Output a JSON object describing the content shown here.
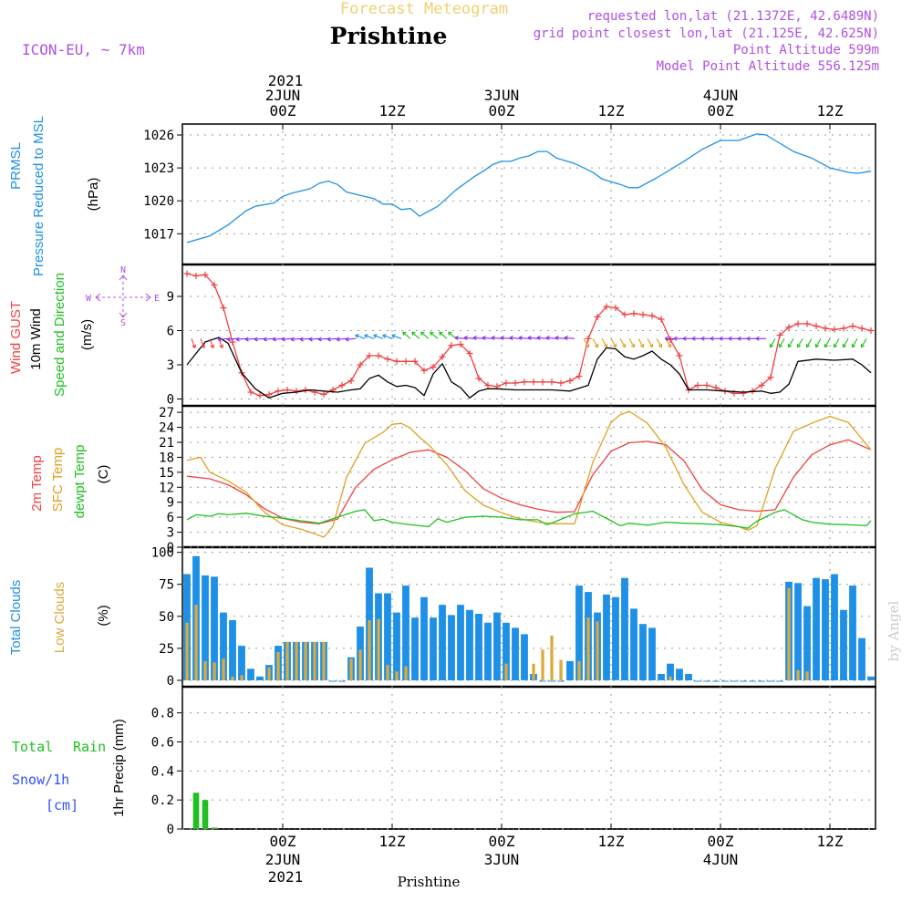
{
  "header": {
    "product_title": "Forecast Meteogram",
    "location_title": "Prishtine",
    "model_label": "ICON-EU, ~ 7km",
    "requested_point": "requested lon,lat (21.1372E, 42.6489N)",
    "grid_point": "grid point closest lon,lat (21.125E, 42.625N)",
    "point_altitude": "Point Altitude 599m",
    "model_altitude": "Model Point Altitude 556.125m",
    "top_year": "2021",
    "bottom_year": "2021",
    "bottom_location": "Prishtine",
    "watermark": "by Angel"
  },
  "colors": {
    "pressure": "#1e90e6",
    "gust": "#f04040",
    "wind": "#000000",
    "temp": "#f04040",
    "sfc_temp": "#e0a020",
    "dewpt": "#20c020",
    "total_clouds": "#1e90e6",
    "low_clouds": "#dcaa3c",
    "rain": "#20c020",
    "snow": "#3050ff",
    "title": "#f0d070",
    "info": "#b050e0",
    "frame": "#000000"
  },
  "time_axis": {
    "top_dates": [
      {
        "hour": 0,
        "label": "2JUN"
      },
      {
        "hour": 24,
        "label": "3JUN"
      },
      {
        "hour": 48,
        "label": "4JUN"
      }
    ],
    "bottom_dates": [
      {
        "hour": 0,
        "label": "2JUN"
      },
      {
        "hour": 24,
        "label": "3JUN"
      },
      {
        "hour": 48,
        "label": "4JUN"
      }
    ],
    "ticks": [
      {
        "hour": 0,
        "label": "00Z"
      },
      {
        "hour": 12,
        "label": "12Z"
      },
      {
        "hour": 24,
        "label": "00Z"
      },
      {
        "hour": 36,
        "label": "12Z"
      },
      {
        "hour": 48,
        "label": "00Z"
      },
      {
        "hour": 60,
        "label": "12Z"
      }
    ],
    "x_range_hours": [
      -11,
      65
    ]
  },
  "panels": {
    "pressure": {
      "label_line1": "PRMSL",
      "label_line2": "Pressure Reduced to MSL",
      "unit": "(hPa)"
    },
    "wind": {
      "label_gust": "Wind GUST",
      "label_wind": "10m Wind",
      "label_dir": "Speed and Direction",
      "unit": "(m/s)",
      "compass_n": "N",
      "compass_s": "S",
      "compass_w": "W",
      "compass_e": "E"
    },
    "temperature": {
      "label_t2m": "2m Temp",
      "label_sfc": "SFC Temp",
      "label_dewpt": "dewpt Temp",
      "unit": "(C)"
    },
    "clouds": {
      "label_total": "Total Clouds",
      "label_low": "Low Clouds",
      "unit": "(%)"
    },
    "precip": {
      "label_total": "Total",
      "label_rain": "Rain",
      "label_snow": "Snow/1h",
      "label_cm": "[cm]",
      "unit": "1hr Precip (mm)"
    }
  },
  "chart_data": [
    {
      "type": "line",
      "title": "",
      "ylabel": "PRMSL Pressure Reduced to MSL (hPa)",
      "ylim": [
        1014.2,
        1027.0
      ],
      "yticks": [
        1017,
        1020,
        1023,
        1026
      ],
      "x_unit": "hours from 2JUN 00Z",
      "series": [
        {
          "name": "PRMSL",
          "x": [
            -10.5,
            -8,
            -6,
            -4,
            -3,
            -1,
            0,
            1,
            3,
            4,
            5,
            6,
            7,
            8,
            10,
            11,
            12,
            13,
            14,
            15,
            17,
            19,
            21,
            22,
            23,
            24,
            25,
            26,
            27,
            28,
            29,
            30,
            32,
            34,
            35,
            37,
            38,
            39,
            41,
            44,
            46,
            48,
            49,
            50,
            51,
            52,
            53,
            54,
            56,
            58,
            60,
            61,
            62,
            63,
            64.5
          ],
          "y": [
            1016.2,
            1016.8,
            1017.8,
            1019.1,
            1019.5,
            1019.8,
            1020.4,
            1020.7,
            1021.1,
            1021.6,
            1021.8,
            1021.5,
            1020.8,
            1020.6,
            1020.2,
            1019.7,
            1019.7,
            1019.2,
            1019.3,
            1018.6,
            1019.5,
            1021.0,
            1022.2,
            1022.7,
            1023.3,
            1023.6,
            1023.6,
            1023.9,
            1024.1,
            1024.5,
            1024.5,
            1023.9,
            1023.4,
            1022.6,
            1022.0,
            1021.5,
            1021.2,
            1021.2,
            1022.1,
            1023.6,
            1024.7,
            1025.5,
            1025.5,
            1025.5,
            1025.8,
            1026.1,
            1026.0,
            1025.5,
            1024.5,
            1023.9,
            1023.0,
            1022.8,
            1022.6,
            1022.5,
            1022.7
          ]
        }
      ]
    },
    {
      "type": "line",
      "title": "",
      "ylabel": "Wind GUST / 10m Wind Speed and Direction (m/s)",
      "ylim": [
        -0.6,
        11.8
      ],
      "yticks": [
        0,
        3,
        6,
        9
      ],
      "x_unit": "hours from 2JUN 00Z",
      "series": [
        {
          "name": "Wind GUST",
          "x": [
            -10.5,
            -9.5,
            -8.5,
            -7.5,
            -6.5,
            -5.5,
            -4.5,
            -3.5,
            -2.5,
            -1.5,
            -0.5,
            0.5,
            1.5,
            2.5,
            3.5,
            4.5,
            5.5,
            6.5,
            7.5,
            8.5,
            9.5,
            10.5,
            11.5,
            12.5,
            13.5,
            14.5,
            15.5,
            16.5,
            17.5,
            18.5,
            19.5,
            20.5,
            21.5,
            22.5,
            23.5,
            24.5,
            25.5,
            26.5,
            27.5,
            28.5,
            29.5,
            30.5,
            31.5,
            32.5,
            33.5,
            34.5,
            35.5,
            36.5,
            37.5,
            38.5,
            39.5,
            40.5,
            41.5,
            42.5,
            43.5,
            44.5,
            45.5,
            46.5,
            47.5,
            48.5,
            49.5,
            50.5,
            51.5,
            52.5,
            53.5,
            54.5,
            55.5,
            56.5,
            57.5,
            58.5,
            59.5,
            60.5,
            61.5,
            62.5,
            63.5,
            64.5
          ],
          "y": [
            11.0,
            10.8,
            10.9,
            10.0,
            8.0,
            5.0,
            2.3,
            0.6,
            0.3,
            0.4,
            0.7,
            0.8,
            0.7,
            0.8,
            0.6,
            0.4,
            0.8,
            1.2,
            1.6,
            3.0,
            3.8,
            3.8,
            3.5,
            3.3,
            3.3,
            3.3,
            2.5,
            2.8,
            3.7,
            4.7,
            4.8,
            4.0,
            1.8,
            1.2,
            1.1,
            1.4,
            1.4,
            1.5,
            1.5,
            1.5,
            1.5,
            1.4,
            1.6,
            2.0,
            5.3,
            7.2,
            8.1,
            8.0,
            7.4,
            7.5,
            7.4,
            7.3,
            7.0,
            5.2,
            3.8,
            0.8,
            1.2,
            1.2,
            1.0,
            0.7,
            0.5,
            0.5,
            0.7,
            1.2,
            1.9,
            5.6,
            6.3,
            6.6,
            6.6,
            6.4,
            6.2,
            6.1,
            6.2,
            6.4,
            6.2,
            6.0
          ]
        },
        {
          "name": "10m Wind",
          "x": [
            -10.5,
            -8.5,
            -7,
            -6,
            -4.5,
            -3,
            -1.5,
            0,
            1.5,
            3,
            4.5,
            6,
            7.5,
            8.5,
            9.5,
            10.5,
            11.5,
            12.5,
            13.5,
            14.5,
            15.5,
            16.5,
            17.5,
            18.5,
            19.5,
            20.5,
            21.5,
            22.5,
            23.5,
            25.5,
            27.5,
            29.5,
            31.5,
            33.5,
            34.5,
            35.5,
            36.5,
            37.5,
            38.5,
            39.5,
            40.5,
            41.5,
            42.5,
            43.5,
            44.5,
            46.5,
            48.5,
            50.5,
            52.5,
            53.5,
            54.5,
            55.5,
            56.5,
            58.5,
            60.5,
            62.5,
            63.5,
            64.5
          ],
          "y": [
            3.0,
            5.0,
            5.4,
            4.9,
            2.3,
            0.9,
            0.1,
            0.5,
            0.6,
            0.8,
            0.7,
            0.6,
            0.8,
            0.9,
            1.8,
            2.1,
            1.5,
            1.1,
            1.2,
            1.0,
            0.3,
            2.2,
            3.1,
            1.5,
            1.0,
            0.1,
            0.7,
            0.9,
            0.9,
            0.8,
            0.8,
            0.8,
            0.7,
            1.2,
            3.5,
            4.5,
            4.4,
            3.7,
            3.5,
            3.8,
            4.2,
            3.5,
            3.0,
            2.2,
            0.8,
            0.8,
            0.7,
            0.6,
            0.7,
            0.5,
            0.6,
            1.3,
            3.3,
            3.5,
            3.4,
            3.5,
            3.0,
            2.3
          ]
        }
      ]
    },
    {
      "type": "line",
      "title": "",
      "ylabel": "2m Temp / SFC Temp / dewpt Temp (C)",
      "ylim": [
        0,
        28.3
      ],
      "yticks": [
        0,
        3,
        6,
        9,
        12,
        15,
        18,
        21,
        24,
        27
      ],
      "x_unit": "hours from 2JUN 00Z",
      "series": [
        {
          "name": "2m Temp",
          "x": [
            -10.5,
            -8,
            -6,
            -4,
            -2,
            0,
            2,
            4,
            6,
            8,
            10,
            12,
            14,
            16,
            18,
            20,
            22,
            24,
            26,
            28,
            30,
            32,
            34,
            36,
            38,
            40,
            42,
            44,
            46,
            48,
            50,
            52,
            54,
            56,
            58,
            60,
            62,
            64.5
          ],
          "y": [
            14.2,
            13.7,
            12.5,
            10.5,
            7.7,
            5.8,
            5.0,
            4.7,
            5.6,
            12.0,
            15.6,
            17.5,
            19.0,
            19.5,
            18.0,
            15.3,
            11.7,
            9.8,
            8.5,
            7.6,
            7.0,
            7.1,
            14.5,
            19.2,
            20.9,
            21.2,
            20.5,
            17.3,
            11.5,
            8.5,
            7.5,
            7.2,
            7.5,
            14.0,
            18.5,
            20.5,
            21.5,
            19.5
          ]
        },
        {
          "name": "SFC Temp",
          "x": [
            -10.5,
            -9,
            -8,
            -6,
            -4,
            -2,
            0,
            2,
            3.5,
            4.5,
            5.5,
            7,
            9,
            11,
            12,
            13,
            14,
            15,
            16,
            18,
            20,
            22,
            24,
            26,
            28,
            30,
            32,
            34,
            36,
            37,
            38,
            40,
            42,
            44,
            46,
            48,
            50,
            51,
            52,
            54,
            56,
            58,
            60,
            62,
            64.5
          ],
          "y": [
            17.4,
            18.0,
            15.0,
            13.3,
            11.0,
            7.0,
            4.5,
            3.6,
            2.7,
            2.0,
            4.2,
            14.0,
            20.8,
            23.0,
            24.6,
            24.8,
            23.8,
            22.0,
            20.5,
            16.5,
            11.3,
            8.4,
            6.9,
            5.7,
            5.0,
            4.7,
            4.7,
            17.0,
            25.0,
            26.5,
            27.2,
            24.8,
            20.0,
            12.5,
            7.0,
            5.0,
            4.1,
            3.4,
            4.3,
            15.8,
            23.2,
            24.8,
            26.2,
            25.0,
            19.5
          ]
        },
        {
          "name": "dewpt Temp",
          "x": [
            -10.5,
            -9.5,
            -8,
            -7,
            -6,
            -4,
            -2,
            0,
            2,
            4,
            6,
            8,
            9,
            10,
            11,
            12,
            14,
            16,
            17,
            18,
            20,
            22,
            24,
            26,
            28,
            29,
            30,
            32,
            34,
            36,
            37,
            38,
            40,
            42,
            44,
            46,
            48,
            50,
            51,
            52,
            54,
            55,
            56,
            57,
            58,
            60,
            62,
            64,
            64.5
          ],
          "y": [
            5.5,
            6.5,
            6.2,
            6.7,
            6.5,
            6.8,
            6.2,
            5.8,
            5.3,
            4.8,
            6.0,
            7.2,
            7.5,
            5.3,
            5.6,
            5.0,
            4.5,
            4.1,
            5.7,
            5.0,
            6.0,
            6.2,
            6.0,
            5.5,
            5.5,
            4.5,
            5.2,
            6.7,
            7.2,
            5.3,
            4.3,
            4.8,
            4.4,
            5.0,
            4.8,
            4.7,
            4.5,
            4.1,
            3.8,
            5.2,
            7.0,
            7.5,
            6.5,
            5.5,
            5.0,
            4.6,
            4.5,
            4.3,
            5.3
          ]
        }
      ]
    },
    {
      "type": "bar",
      "title": "",
      "ylabel": "Total Clouds / Low Clouds (%)",
      "ylim": [
        -5,
        104
      ],
      "yticks": [
        0,
        25,
        50,
        75,
        100
      ],
      "x_unit": "hours from 2JUN 00Z",
      "x": [
        -10.5,
        -9.5,
        -8.5,
        -7.5,
        -6.5,
        -5.5,
        -4.5,
        -3.5,
        -2.5,
        -1.5,
        -0.5,
        0.5,
        1.5,
        2.5,
        3.5,
        4.5,
        5.5,
        6.5,
        7.5,
        8.5,
        9.5,
        10.5,
        11.5,
        12.5,
        13.5,
        14.5,
        15.5,
        16.5,
        17.5,
        18.5,
        19.5,
        20.5,
        21.5,
        22.5,
        23.5,
        24.5,
        25.5,
        26.5,
        27.5,
        28.5,
        29.5,
        30.5,
        31.5,
        32.5,
        33.5,
        34.5,
        35.5,
        36.5,
        37.5,
        38.5,
        39.5,
        40.5,
        41.5,
        42.5,
        43.5,
        44.5,
        45.5,
        46.5,
        47.5,
        48.5,
        49.5,
        50.5,
        51.5,
        52.5,
        53.5,
        54.5,
        55.5,
        56.5,
        57.5,
        58.5,
        59.5,
        60.5,
        61.5,
        62.5,
        63.5,
        64.5
      ],
      "series": [
        {
          "name": "Total Clouds",
          "values": [
            83,
            97,
            82,
            81,
            53,
            47,
            27,
            9,
            3,
            12,
            27,
            30,
            30,
            30,
            30,
            30,
            0,
            0,
            18,
            42,
            88,
            68,
            68,
            53,
            74,
            49,
            65,
            49,
            59,
            51,
            59,
            55,
            52,
            45,
            53,
            45,
            41,
            36,
            5,
            0,
            0,
            0,
            15,
            74,
            69,
            53,
            67,
            65,
            80,
            56,
            44,
            41,
            5,
            13,
            9,
            5,
            0,
            0,
            0,
            0,
            0,
            0,
            0,
            0,
            0,
            0,
            77,
            76,
            58,
            80,
            79,
            83,
            55,
            74,
            33,
            3
          ]
        },
        {
          "name": "Low Clouds",
          "values": [
            45,
            59,
            15,
            14,
            17,
            3,
            4,
            0,
            0,
            10,
            22,
            30,
            30,
            30,
            30,
            30,
            0,
            0,
            17,
            24,
            47,
            48,
            12,
            7,
            11,
            0,
            0,
            0,
            0,
            0,
            0,
            0,
            0,
            0,
            0,
            13,
            0,
            0,
            13,
            24,
            35,
            16,
            0,
            15,
            49,
            46,
            0,
            0,
            0,
            0,
            0,
            0,
            0,
            3,
            0,
            0,
            0,
            0,
            0,
            0,
            0,
            0,
            0,
            0,
            0,
            0,
            72,
            8,
            7,
            0,
            0,
            0,
            0,
            0,
            0,
            0
          ]
        }
      ]
    },
    {
      "type": "bar",
      "title": "",
      "ylabel": "1hr Precip (mm)",
      "ylim": [
        0,
        0.98
      ],
      "yticks": [
        0,
        0.2,
        0.4,
        0.6,
        0.8
      ],
      "x_unit": "hours from 2JUN 00Z",
      "x": [
        -9.5,
        -8.5,
        -7.5
      ],
      "series": [
        {
          "name": "Total Rain",
          "values": [
            0.25,
            0.2,
            0.01
          ]
        }
      ]
    }
  ]
}
